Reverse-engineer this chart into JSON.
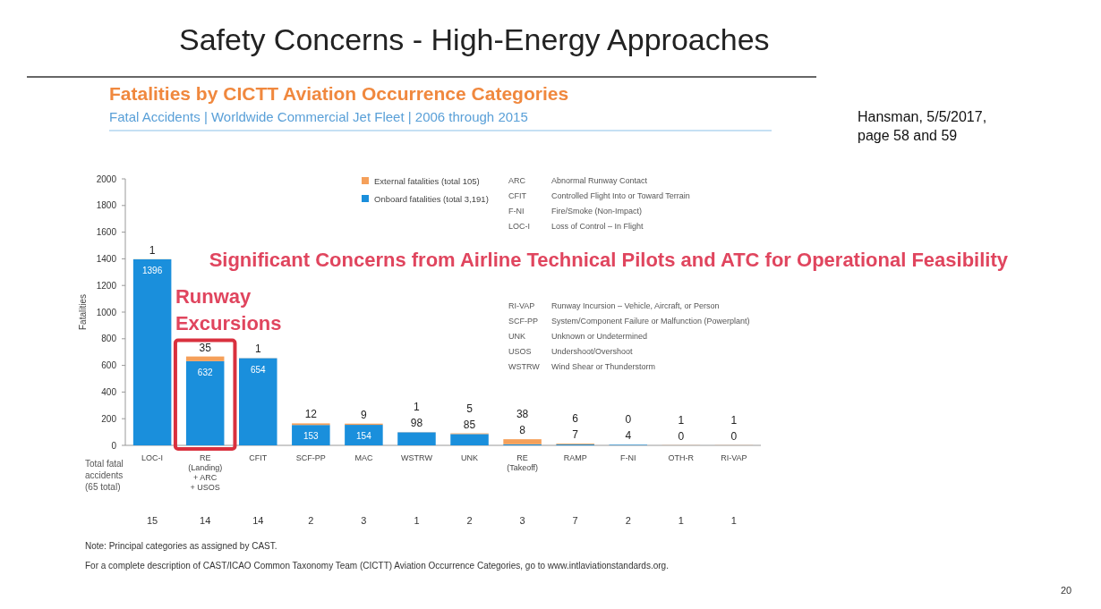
{
  "chart_data": {
    "type": "bar",
    "stacked": true,
    "title": "Safety  Concerns - High-Energy Approaches",
    "subtitle": "Fatalities by CICTT Aviation Occurrence Categories",
    "ylabel": "Fatalities",
    "categories": [
      "LOC-I",
      "RE (Landing) + ARC + USOS",
      "CFIT",
      "SCF-PP",
      "MAC",
      "WSTRW",
      "UNK",
      "RE (Takeoff)",
      "RAMP",
      "F-NI",
      "OTH-R",
      "RI-VAP"
    ],
    "series": [
      {
        "name": "Onboard fatalities (total 3,191)",
        "color": "#1a8fdc",
        "values": [
          1396,
          632,
          654,
          153,
          154,
          98,
          85,
          8,
          7,
          4,
          0,
          0
        ]
      },
      {
        "name": "External fatalities (total 105)",
        "color": "#f5a05a",
        "values": [
          1,
          35,
          1,
          12,
          9,
          1,
          5,
          38,
          6,
          0,
          1,
          1
        ]
      }
    ],
    "data_labels": true,
    "ylim": [
      0,
      2000
    ],
    "yticks": [
      0,
      200,
      400,
      600,
      800,
      1000,
      1200,
      1400,
      1600,
      1800,
      2000
    ],
    "grid": false,
    "legend": "top",
    "annotations": [
      "Fatal Accidents | Worldwide Commercial Jet Fleet | 2006 through 2015",
      "Hansman, 5/5/2017, page 58 and 59",
      "Significant Concerns from Airline Technical Pilots and ATC for Operational Feasibility",
      {
        "text": "Runway Excursions",
        "x": "RE (Landing) + ARC + USOS",
        "y": 667
      },
      "Total fatal accidents (65 total)",
      "15",
      "14",
      "14",
      "2",
      "3",
      "1",
      "2",
      "3",
      "7",
      "2",
      "1",
      "1",
      "ARC Abnormal Runway Contact",
      "CFIT Controlled Flight Into or Toward Terrain",
      "F-NI Fire/Smoke (Non-Impact)",
      "LOC-I Loss of Control – In Flight",
      "RI-VAP Runway Incursion – Vehicle, Aircraft, or Person",
      "SCF-PP System/Component Failure or Malfunction (Powerplant)",
      "UNK Unknown or Undetermined",
      "USOS Undershoot/Overshoot",
      "WSTRW Wind Shear or Thunderstorm",
      "Note: Principal categories as assigned by CAST.",
      "For a complete description of CAST/ICAO Common Taxonomy Team (CICTT) Aviation Occurrence Categories, go to www.intlaviationstandards.org.",
      "20"
    ]
  }
}
